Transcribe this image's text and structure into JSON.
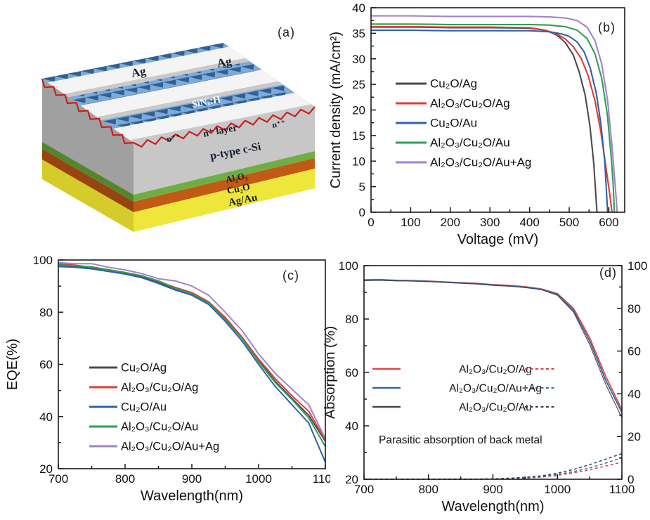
{
  "figure": {
    "background": "#ffffff",
    "letters": {
      "a": "(a)",
      "b": "(b)",
      "c": "(c)",
      "d": "(d)"
    }
  },
  "schematic": {
    "labels": {
      "ag1": "Ag",
      "ag2": "Ag",
      "sinx": "SiNₓ:H",
      "npp_left": "n⁺⁺",
      "np_layer": "n⁺ layer",
      "npp_right": "n⁺⁺",
      "bulk": "p-type c-Si",
      "al2o3": "Al₂O₃",
      "cu2o": "Cu₂O",
      "back_metal": "Ag/Au"
    },
    "colors": {
      "pyramid_light": "#7ea9d8",
      "pyramid_dark": "#2e618f",
      "finger": "#f4f4f4",
      "finger_shade": "#c9c9c9",
      "edge_red": "#cb1f1f",
      "si_front": "#c7c7c7",
      "si_left": "#a0a0a0",
      "al2o3_front": "#6fae44",
      "al2o3_left": "#55862f",
      "cu2o_front": "#c05a15",
      "cu2o_left": "#96450f",
      "back_front": "#efe63c",
      "back_left": "#d5cb2a",
      "label_dark": "#16202c",
      "label_white": "#ffffff"
    }
  },
  "chart_data": [
    {
      "id": "b",
      "type": "line",
      "title": "",
      "xlabel": "Voltage (mV)",
      "ylabel": "Current density (mA/cm²)",
      "xlim": [
        0,
        640
      ],
      "ylim": [
        0,
        40
      ],
      "xticks": [
        0,
        100,
        200,
        300,
        400,
        500,
        600
      ],
      "yticks": [
        0,
        5,
        10,
        15,
        20,
        25,
        30,
        35,
        40
      ],
      "xtick_minor": 50,
      "ytick_minor": 2.5,
      "grid": false,
      "legend_position": "center-left",
      "series": [
        {
          "name": "Cu₂O/Ag",
          "color": "#4b4b4b",
          "width": 2.1,
          "pts": [
            [
              0,
              36.2
            ],
            [
              50,
              36.2
            ],
            [
              100,
              36.2
            ],
            [
              150,
              36.15
            ],
            [
              200,
              36.1
            ],
            [
              250,
              36.1
            ],
            [
              300,
              36.1
            ],
            [
              350,
              36.05
            ],
            [
              400,
              36.0
            ],
            [
              430,
              35.7
            ],
            [
              450,
              35.3
            ],
            [
              470,
              34.6
            ],
            [
              490,
              33.2
            ],
            [
              510,
              30.8
            ],
            [
              525,
              27.5
            ],
            [
              540,
              23.0
            ],
            [
              552,
              17.0
            ],
            [
              562,
              9.5
            ],
            [
              570,
              0
            ]
          ]
        },
        {
          "name": "Al₂O₃/Cu₂O/Ag",
          "color": "#e23b36",
          "width": 2.1,
          "pts": [
            [
              0,
              36.3
            ],
            [
              50,
              36.3
            ],
            [
              100,
              36.3
            ],
            [
              150,
              36.25
            ],
            [
              200,
              36.2
            ],
            [
              250,
              36.2
            ],
            [
              300,
              36.2
            ],
            [
              350,
              36.15
            ],
            [
              400,
              36.1
            ],
            [
              440,
              35.6
            ],
            [
              470,
              34.8
            ],
            [
              490,
              33.9
            ],
            [
              510,
              32.4
            ],
            [
              530,
              30.1
            ],
            [
              548,
              26.7
            ],
            [
              565,
              21.8
            ],
            [
              580,
              15.6
            ],
            [
              593,
              8.6
            ],
            [
              602,
              3.6
            ],
            [
              608,
              0
            ]
          ]
        },
        {
          "name": "Cu₂O/Au",
          "color": "#2d62ab",
          "width": 2.1,
          "pts": [
            [
              0,
              35.6
            ],
            [
              50,
              35.6
            ],
            [
              100,
              35.6
            ],
            [
              150,
              35.55
            ],
            [
              200,
              35.5
            ],
            [
              250,
              35.5
            ],
            [
              300,
              35.5
            ],
            [
              350,
              35.5
            ],
            [
              400,
              35.5
            ],
            [
              450,
              35.3
            ],
            [
              480,
              34.9
            ],
            [
              500,
              34.4
            ],
            [
              520,
              33.3
            ],
            [
              538,
              31.3
            ],
            [
              553,
              28.2
            ],
            [
              568,
              23.4
            ],
            [
              580,
              17.2
            ],
            [
              590,
              9.6
            ],
            [
              597,
              0
            ]
          ]
        },
        {
          "name": "Al₂O₃/Cu₂O/Au",
          "color": "#2f9e55",
          "width": 2.1,
          "pts": [
            [
              0,
              36.8
            ],
            [
              50,
              36.8
            ],
            [
              100,
              36.8
            ],
            [
              150,
              36.75
            ],
            [
              200,
              36.7
            ],
            [
              250,
              36.7
            ],
            [
              300,
              36.7
            ],
            [
              350,
              36.7
            ],
            [
              400,
              36.7
            ],
            [
              450,
              36.6
            ],
            [
              490,
              36.3
            ],
            [
              520,
              35.6
            ],
            [
              545,
              34.0
            ],
            [
              565,
              31.0
            ],
            [
              582,
              26.2
            ],
            [
              596,
              19.2
            ],
            [
              606,
              10.8
            ],
            [
              611,
              5.4
            ],
            [
              614,
              0
            ]
          ]
        },
        {
          "name": "Al₂O₃/Cu₂O/Au+Ag",
          "color": "#a283cb",
          "width": 2.1,
          "pts": [
            [
              0,
              38.4
            ],
            [
              50,
              38.4
            ],
            [
              100,
              38.4
            ],
            [
              150,
              38.35
            ],
            [
              200,
              38.3
            ],
            [
              250,
              38.3
            ],
            [
              300,
              38.3
            ],
            [
              350,
              38.3
            ],
            [
              400,
              38.3
            ],
            [
              450,
              38.2
            ],
            [
              490,
              38.0
            ],
            [
              520,
              37.5
            ],
            [
              545,
              36.2
            ],
            [
              565,
              33.6
            ],
            [
              582,
              29.0
            ],
            [
              597,
              21.8
            ],
            [
              608,
              13.0
            ],
            [
              616,
              5.2
            ],
            [
              621,
              0
            ]
          ]
        }
      ]
    },
    {
      "id": "c",
      "type": "line",
      "title": "",
      "xlabel": "Wavelength(nm)",
      "ylabel": "EQE(%)",
      "xlim": [
        700,
        1100
      ],
      "ylim": [
        20,
        100
      ],
      "xticks": [
        700,
        800,
        900,
        1000,
        1100
      ],
      "yticks": [
        20,
        40,
        60,
        80,
        100
      ],
      "xtick_minor": 50,
      "ytick_minor": 10,
      "grid": false,
      "legend_position": "center-left",
      "x": [
        700,
        725,
        750,
        775,
        800,
        825,
        850,
        875,
        900,
        925,
        950,
        975,
        1000,
        1025,
        1050,
        1075,
        1100
      ],
      "series": [
        {
          "name": "Cu₂O/Ag",
          "color": "#4b4b4b",
          "width": 2.0,
          "values": [
            98.0,
            97.6,
            97.0,
            96.2,
            95.0,
            93.6,
            91.5,
            89.0,
            87.0,
            83.5,
            77.5,
            70.0,
            61.5,
            53.5,
            47.0,
            40.5,
            30.5
          ]
        },
        {
          "name": "Al₂O₃/Cu₂O/Ag",
          "color": "#e23b36",
          "width": 2.0,
          "values": [
            98.5,
            98.0,
            97.2,
            96.3,
            95.2,
            94.0,
            91.8,
            89.5,
            87.5,
            84.0,
            78.0,
            70.5,
            62.0,
            54.5,
            48.0,
            42.0,
            31.0
          ]
        },
        {
          "name": "Cu₂O/Au",
          "color": "#2d62ab",
          "width": 2.0,
          "values": [
            97.5,
            97.2,
            96.6,
            95.6,
            94.6,
            93.2,
            91.0,
            88.5,
            86.5,
            83.0,
            76.5,
            69.0,
            60.0,
            51.5,
            44.5,
            37.5,
            22.5
          ]
        },
        {
          "name": "Al₂O₃/Cu₂O/Au",
          "color": "#2f9e55",
          "width": 2.0,
          "values": [
            98.2,
            97.8,
            97.4,
            96.2,
            95.2,
            93.9,
            92.0,
            89.2,
            87.0,
            83.6,
            77.2,
            70.0,
            61.0,
            53.0,
            46.5,
            39.5,
            28.5
          ]
        },
        {
          "name": "Al₂O₃/Cu₂O/Au+Ag",
          "color": "#a283cb",
          "width": 2.0,
          "values": [
            99.0,
            98.6,
            98.6,
            97.2,
            96.2,
            94.8,
            92.8,
            92.0,
            90.0,
            86.5,
            80.0,
            73.0,
            64.0,
            56.5,
            50.5,
            44.5,
            31.5
          ]
        }
      ]
    },
    {
      "id": "d",
      "type": "line",
      "title": "",
      "xlabel": "Wavelength(nm)",
      "ylabel": "Absorption (%)",
      "xlim": [
        700,
        1100
      ],
      "ylim": [
        20,
        100
      ],
      "ylim_right": [
        0,
        100
      ],
      "xticks": [
        700,
        800,
        900,
        1000,
        1100
      ],
      "yticks": [
        20,
        40,
        60,
        80,
        100
      ],
      "yticks_right": [
        0,
        20,
        40,
        60,
        80,
        100
      ],
      "xtick_minor": 50,
      "ytick_minor": 10,
      "ytick_minor_right": 10,
      "grid": false,
      "annotation": "Parasitic absorption of back metal",
      "x": [
        700,
        725,
        750,
        775,
        800,
        825,
        850,
        875,
        900,
        925,
        950,
        975,
        1000,
        1025,
        1050,
        1075,
        1100
      ],
      "series": [
        {
          "name": "Al₂O₃/Cu₂O/Ag",
          "color": "#e2474d",
          "width": 1.8,
          "axis": "left",
          "values": [
            94.7,
            94.8,
            94.5,
            94.4,
            94.2,
            93.9,
            93.6,
            93.4,
            92.9,
            92.6,
            92.1,
            91.3,
            89.5,
            84.0,
            73.0,
            58.5,
            46.0
          ]
        },
        {
          "name": "Al₂O₃/Cu₂O/Au+Ag",
          "color": "#33689e",
          "width": 1.8,
          "axis": "left",
          "values": [
            94.5,
            94.6,
            94.4,
            94.3,
            94.1,
            93.8,
            93.5,
            93.2,
            92.7,
            92.4,
            91.9,
            91.1,
            89.2,
            83.2,
            71.8,
            57.0,
            45.0
          ]
        },
        {
          "name": "Al₂O₃/Cu₂O/Au",
          "color": "#41454d",
          "width": 1.1,
          "axis": "left",
          "values": [
            94.4,
            94.5,
            94.3,
            94.2,
            94.0,
            93.7,
            93.4,
            93.1,
            92.6,
            92.3,
            91.8,
            91.0,
            88.9,
            82.6,
            70.5,
            55.5,
            43.0
          ]
        },
        {
          "name": "Al₂O₃/Cu₂O/Ag (parasitic)",
          "color": "#e03c44",
          "width": 1.5,
          "axis": "right",
          "dash": "4,3.5",
          "values": [
            0,
            0,
            0,
            0,
            0,
            0,
            0,
            0,
            0.1,
            0.2,
            0.5,
            1.0,
            1.8,
            3.0,
            4.4,
            6.2,
            8.0
          ]
        },
        {
          "name": "Al₂O₃/Cu₂O/Au+Ag (parasitic)",
          "color": "#3a6ea5",
          "width": 1.5,
          "axis": "right",
          "dash": "4,3.5",
          "values": [
            0,
            0,
            0,
            0,
            0,
            0,
            0,
            0,
            0.1,
            0.3,
            0.6,
            1.2,
            2.2,
            3.6,
            5.3,
            7.6,
            10.0
          ]
        },
        {
          "name": "Al₂O₃/Cu₂O/Au (parasitic)",
          "color": "#2f4054",
          "width": 1.5,
          "axis": "right",
          "dash": "4,3.5",
          "values": [
            0,
            0,
            0,
            0,
            0,
            0,
            0,
            0.1,
            0.2,
            0.5,
            0.9,
            1.6,
            2.8,
            4.6,
            6.8,
            9.4,
            12.0
          ]
        }
      ],
      "legend_dual": [
        {
          "label": "Al₂O₃/Cu₂O/Ag",
          "solid_color": "#e2474d",
          "dash_color": "#e03c44"
        },
        {
          "label": "Al₂O₃/Cu₂O/Au+Ag",
          "solid_color": "#33689e",
          "dash_color": "#3a6ea5"
        },
        {
          "label": "Al₂O₃/Cu₂O/Au",
          "solid_color": "#41454d",
          "dash_color": "#2f4054"
        }
      ]
    }
  ]
}
